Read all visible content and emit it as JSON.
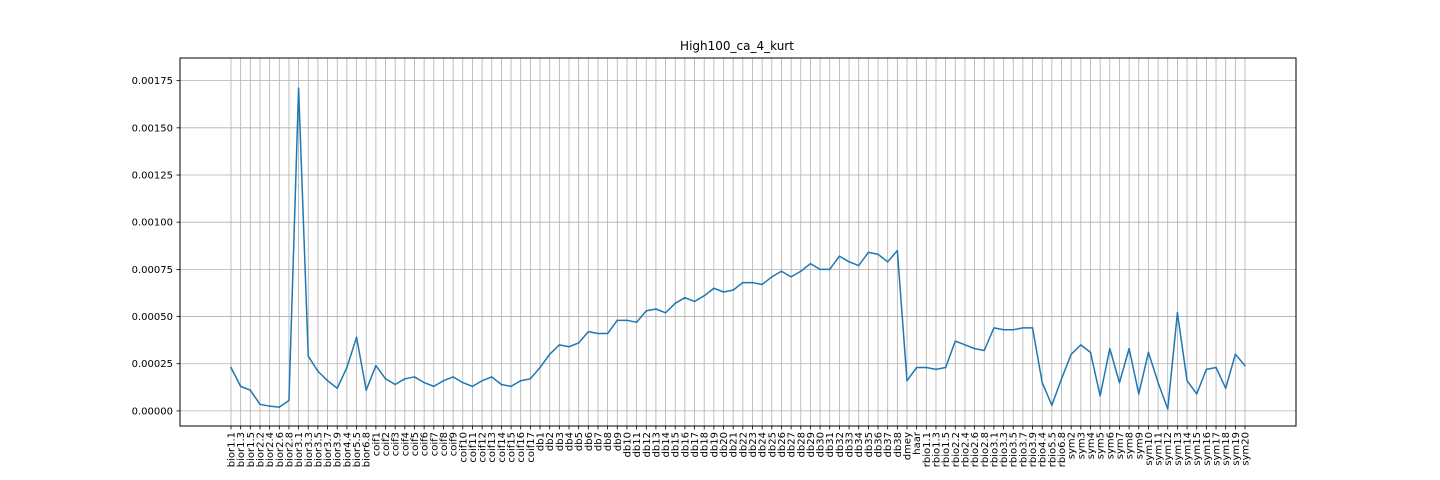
{
  "chart_data": {
    "type": "line",
    "title": "High100_ca_4_kurt",
    "xlabel": "",
    "ylabel": "",
    "ylim": [
      -8e-05,
      0.00187
    ],
    "yticks": [
      "0.00000",
      "0.00025",
      "0.00050",
      "0.00075",
      "0.00100",
      "0.00125",
      "0.00150",
      "0.00175"
    ],
    "ytick_values": [
      0,
      0.00025,
      0.0005,
      0.00075,
      0.001,
      0.00125,
      0.0015,
      0.00175
    ],
    "grid": true,
    "line_color": "#1f77b4",
    "categories": [
      "bior1.1",
      "bior1.3",
      "bior1.5",
      "bior2.2",
      "bior2.4",
      "bior2.6",
      "bior2.8",
      "bior3.1",
      "bior3.3",
      "bior3.5",
      "bior3.7",
      "bior3.9",
      "bior4.4",
      "bior5.5",
      "bior6.8",
      "coif1",
      "coif2",
      "coif3",
      "coif4",
      "coif5",
      "coif6",
      "coif7",
      "coif8",
      "coif9",
      "coif10",
      "coif11",
      "coif12",
      "coif13",
      "coif14",
      "coif15",
      "coif16",
      "coif17",
      "db1",
      "db2",
      "db3",
      "db4",
      "db5",
      "db6",
      "db7",
      "db8",
      "db9",
      "db10",
      "db11",
      "db12",
      "db13",
      "db14",
      "db15",
      "db16",
      "db17",
      "db18",
      "db19",
      "db20",
      "db21",
      "db22",
      "db23",
      "db24",
      "db25",
      "db26",
      "db27",
      "db28",
      "db29",
      "db30",
      "db31",
      "db32",
      "db33",
      "db34",
      "db35",
      "db36",
      "db37",
      "db38",
      "dmey",
      "haar",
      "rbio1.1",
      "rbio1.3",
      "rbio1.5",
      "rbio2.2",
      "rbio2.4",
      "rbio2.6",
      "rbio2.8",
      "rbio3.1",
      "rbio3.3",
      "rbio3.5",
      "rbio3.7",
      "rbio3.9",
      "rbio4.4",
      "rbio5.5",
      "rbio6.8",
      "sym2",
      "sym3",
      "sym4",
      "sym5",
      "sym6",
      "sym7",
      "sym8",
      "sym9",
      "sym10",
      "sym11",
      "sym12",
      "sym13",
      "sym14",
      "sym15",
      "sym16",
      "sym17",
      "sym18",
      "sym19",
      "sym20"
    ],
    "series": [
      {
        "values": [
          0.00023,
          0.00013,
          0.00011,
          3.5e-05,
          2.5e-05,
          2e-05,
          5.5e-05,
          0.00171,
          0.00029,
          0.00021,
          0.00016,
          0.00012,
          0.00023,
          0.00039,
          0.00011,
          0.00024,
          0.00017,
          0.00014,
          0.00017,
          0.00018,
          0.00015,
          0.00013,
          0.00016,
          0.00018,
          0.00015,
          0.00013,
          0.00016,
          0.00018,
          0.00014,
          0.00013,
          0.00016,
          0.00017,
          0.00023,
          0.0003,
          0.00035,
          0.00034,
          0.00036,
          0.00042,
          0.00041,
          0.00041,
          0.00048,
          0.00048,
          0.00047,
          0.00053,
          0.00054,
          0.00052,
          0.00057,
          0.0006,
          0.00058,
          0.00061,
          0.00065,
          0.00063,
          0.00064,
          0.00068,
          0.00068,
          0.00067,
          0.00071,
          0.00074,
          0.00071,
          0.00074,
          0.00078,
          0.00075,
          0.00075,
          0.00082,
          0.00079,
          0.00077,
          0.00084,
          0.00083,
          0.00079,
          0.00085,
          0.00016,
          0.00023,
          0.00023,
          0.00022,
          0.00023,
          0.00037,
          0.00035,
          0.00033,
          0.00032,
          0.00044,
          0.00043,
          0.00043,
          0.00044,
          0.00044,
          0.00015,
          3e-05,
          0.00017,
          0.0003,
          0.00035,
          0.00031,
          8e-05,
          0.00033,
          0.00015,
          0.00033,
          9e-05,
          0.00031,
          0.00015,
          1e-05,
          0.00052,
          0.00016,
          9e-05,
          0.00022,
          0.00023,
          0.00012,
          0.0003,
          0.00024
        ]
      }
    ]
  }
}
